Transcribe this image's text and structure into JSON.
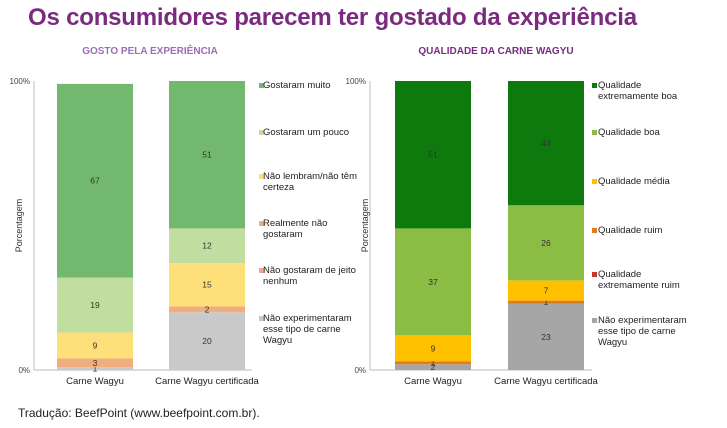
{
  "header": {
    "title": "Os consumidores parecem ter gostado da experiência"
  },
  "footer": {
    "credit": "Tradução: BeefPoint (www.beefpoint.com.br)."
  },
  "chart_data": [
    {
      "type": "bar",
      "stacked": true,
      "title": "GOSTO PELA EXPERIÊNCIA",
      "title_color": "#9b6fb1",
      "ylabel": "Porcentagem",
      "xlabel": "",
      "ylim": [
        0,
        100
      ],
      "ytick_labels": [
        "0%",
        "100%"
      ],
      "grid": false,
      "legend_position": "right",
      "categories": [
        "Carne Wagyu",
        "Carne Wagyu certificada"
      ],
      "series": [
        {
          "name": "Não experimentaram esse tipo de carne Wagyu",
          "color": "#c9c9c9",
          "values": [
            1,
            20
          ]
        },
        {
          "name": "Não gostaram de jeito nenhum",
          "color": "#f2a58e",
          "values": [
            null,
            null
          ]
        },
        {
          "name": "Realmente não gostaram",
          "color": "#f0ad7e",
          "values": [
            3,
            2
          ]
        },
        {
          "name": "Não lembram/não têm certeza",
          "color": "#fde07a",
          "values": [
            9,
            15
          ]
        },
        {
          "name": "Gostaram um pouco",
          "color": "#c2dda0",
          "values": [
            19,
            12
          ]
        },
        {
          "name": "Gostaram muito",
          "color": "#72b86e",
          "values": [
            67,
            51
          ]
        }
      ],
      "legend_order": [
        5,
        4,
        3,
        2,
        1,
        0
      ]
    },
    {
      "type": "bar",
      "stacked": true,
      "title": "QUALIDADE DA CARNE WAGYU",
      "title_color": "#7a2b80",
      "ylabel": "Porcentagem",
      "xlabel": "",
      "ylim": [
        0,
        100
      ],
      "ytick_labels": [
        "0%",
        "100%"
      ],
      "grid": false,
      "legend_position": "right",
      "categories": [
        "Carne Wagyu",
        "Carne Wagyu certificada"
      ],
      "series": [
        {
          "name": "Não experimentaram esse tipo de carne Wagyu",
          "color": "#a6a6a6",
          "values": [
            2,
            23
          ]
        },
        {
          "name": "Qualidade extremamente ruim",
          "color": "#c0392b",
          "values": [
            null,
            null
          ]
        },
        {
          "name": "Qualidade ruim",
          "color": "#e07b1f",
          "values": [
            1,
            1
          ]
        },
        {
          "name": "Qualidade média",
          "color": "#ffc000",
          "values": [
            9,
            7
          ]
        },
        {
          "name": "Qualidade boa",
          "color": "#8bbd44",
          "values": [
            37,
            26
          ]
        },
        {
          "name": "Qualidade extremamente boa",
          "color": "#0e7a0e",
          "values": [
            51,
            43
          ]
        }
      ],
      "legend_order": [
        5,
        4,
        3,
        2,
        1,
        0
      ]
    }
  ]
}
